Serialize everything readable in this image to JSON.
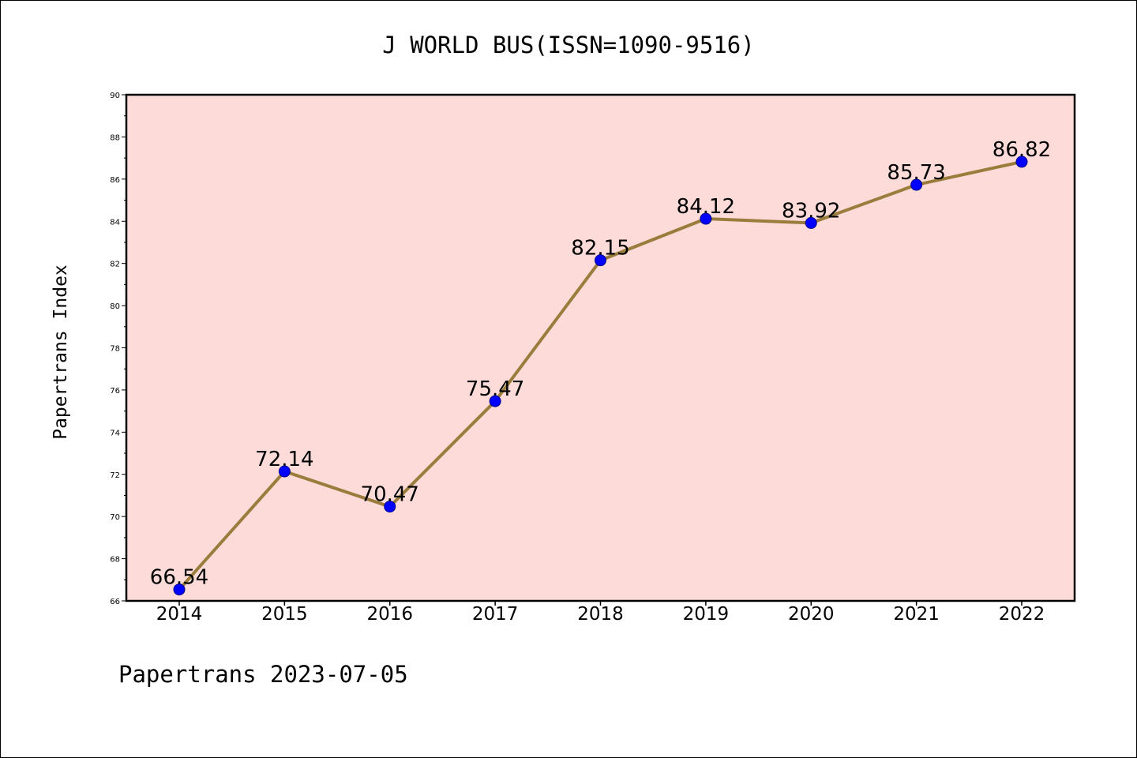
{
  "chart_data": {
    "type": "line",
    "title": "J WORLD BUS(ISSN=1090-9516)",
    "ylabel": "Papertrans Index",
    "xlabel": "",
    "footer": "Papertrans 2023-07-05",
    "categories": [
      "2014",
      "2015",
      "2016",
      "2017",
      "2018",
      "2019",
      "2020",
      "2021",
      "2022"
    ],
    "values": [
      66.54,
      72.14,
      70.47,
      75.47,
      82.15,
      84.12,
      83.92,
      85.73,
      86.82
    ],
    "data_labels": [
      "66.54",
      "72.14",
      "70.47",
      "75.47",
      "82.15",
      "84.12",
      "83.92",
      "85.73",
      "86.82"
    ],
    "ylim": [
      66,
      90
    ],
    "yticks": [
      "66",
      "68",
      "70",
      "72",
      "74",
      "76",
      "78",
      "80",
      "82",
      "84",
      "86",
      "88",
      "90"
    ],
    "grid": false,
    "colors": {
      "plot_background": "#fddbd8",
      "line": "#9a7d3c",
      "marker_fill": "#0000ff",
      "marker_edge": "#00008b"
    }
  }
}
